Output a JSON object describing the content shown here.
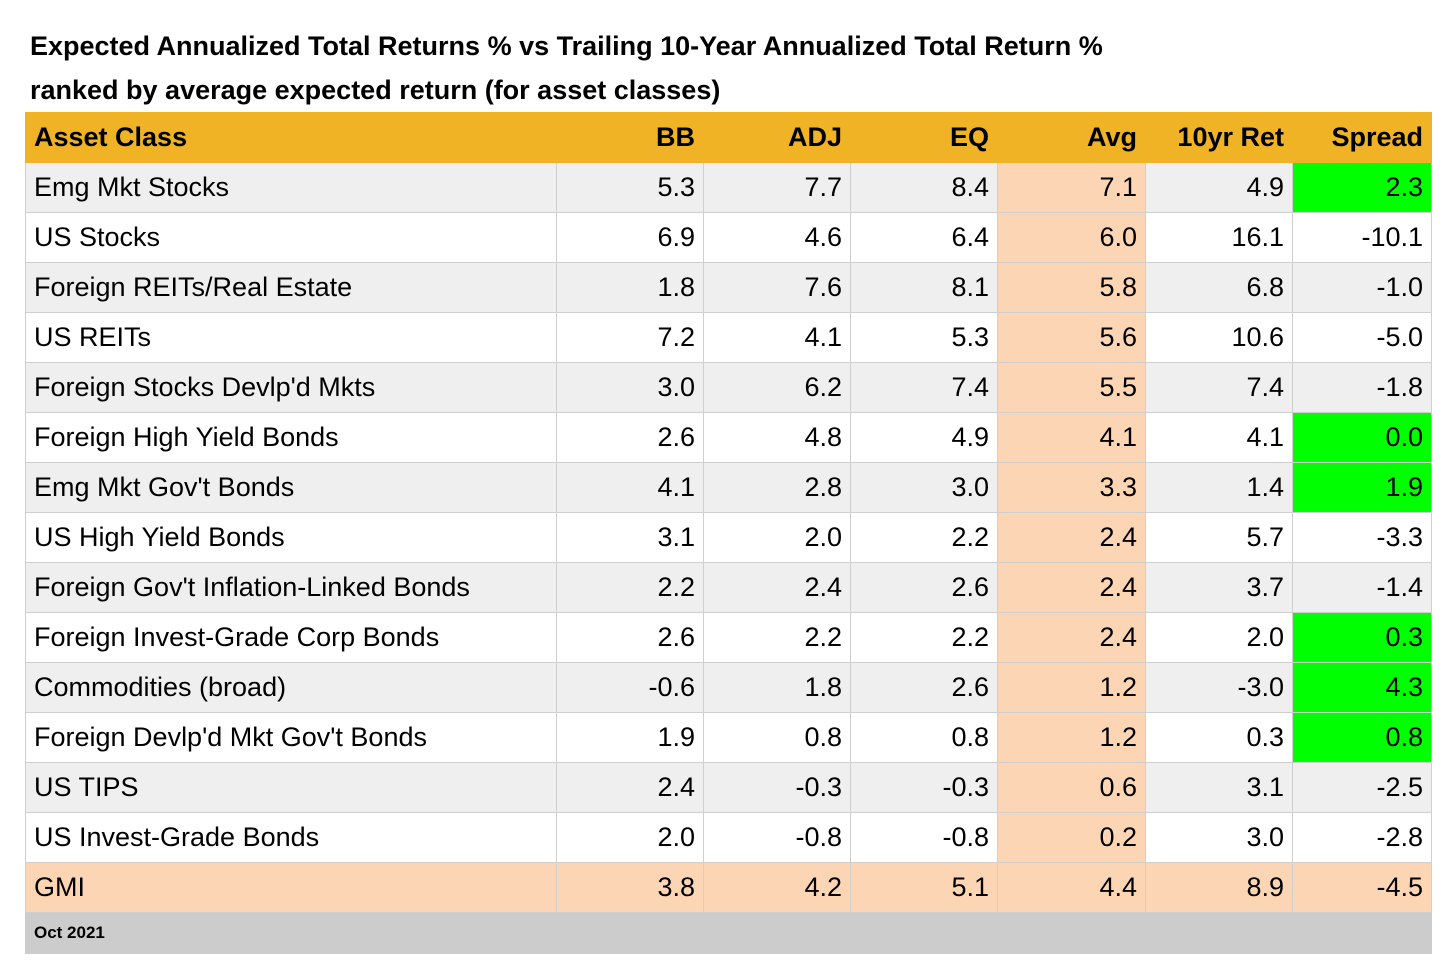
{
  "title": {
    "line1": "Expected Annualized Total Returns % vs Trailing 10-Year Annualized Total Return %",
    "line2": "ranked by average expected return (for asset classes)"
  },
  "chart_data": {
    "type": "table",
    "columns": [
      "Asset Class",
      "BB",
      "ADJ",
      "EQ",
      "Avg",
      "10yr Ret",
      "Spread"
    ],
    "rows": [
      [
        "Emg Mkt Stocks",
        "5.3",
        "7.7",
        "8.4",
        "7.1",
        "4.9",
        "2.3"
      ],
      [
        "US Stocks",
        "6.9",
        "4.6",
        "6.4",
        "6.0",
        "16.1",
        "-10.1"
      ],
      [
        "Foreign REITs/Real Estate",
        "1.8",
        "7.6",
        "8.1",
        "5.8",
        "6.8",
        "-1.0"
      ],
      [
        "US REITs",
        "7.2",
        "4.1",
        "5.3",
        "5.6",
        "10.6",
        "-5.0"
      ],
      [
        "Foreign Stocks Devlp'd Mkts",
        "3.0",
        "6.2",
        "7.4",
        "5.5",
        "7.4",
        "-1.8"
      ],
      [
        "Foreign High Yield Bonds",
        "2.6",
        "4.8",
        "4.9",
        "4.1",
        "4.1",
        "0.0"
      ],
      [
        "Emg Mkt Gov't Bonds",
        "4.1",
        "2.8",
        "3.0",
        "3.3",
        "1.4",
        "1.9"
      ],
      [
        "US High Yield Bonds",
        "3.1",
        "2.0",
        "2.2",
        "2.4",
        "5.7",
        "-3.3"
      ],
      [
        "Foreign Gov't Inflation-Linked Bonds",
        "2.2",
        "2.4",
        "2.6",
        "2.4",
        "3.7",
        "-1.4"
      ],
      [
        "Foreign Invest-Grade Corp Bonds",
        "2.6",
        "2.2",
        "2.2",
        "2.4",
        "2.0",
        "0.3"
      ],
      [
        "Commodities (broad)",
        "-0.6",
        "1.8",
        "2.6",
        "1.2",
        "-3.0",
        "4.3"
      ],
      [
        "Foreign Devlp'd Mkt Gov't Bonds",
        "1.9",
        "0.8",
        "0.8",
        "1.2",
        "0.3",
        "0.8"
      ],
      [
        "US TIPS",
        "2.4",
        "-0.3",
        "-0.3",
        "0.6",
        "3.1",
        "-2.5"
      ],
      [
        "US Invest-Grade Bonds",
        "2.0",
        "-0.8",
        "-0.8",
        "0.2",
        "3.0",
        "-2.8"
      ],
      [
        "GMI",
        "3.8",
        "4.2",
        "5.1",
        "4.4",
        "8.9",
        "-4.5"
      ]
    ],
    "footer": "Oct 2021"
  },
  "colors": {
    "header": "#efb325",
    "avg_column": "#fcd6b4",
    "positive_spread": "#00ff00",
    "row_alt": "#efefef",
    "footer": "#cccccc"
  }
}
